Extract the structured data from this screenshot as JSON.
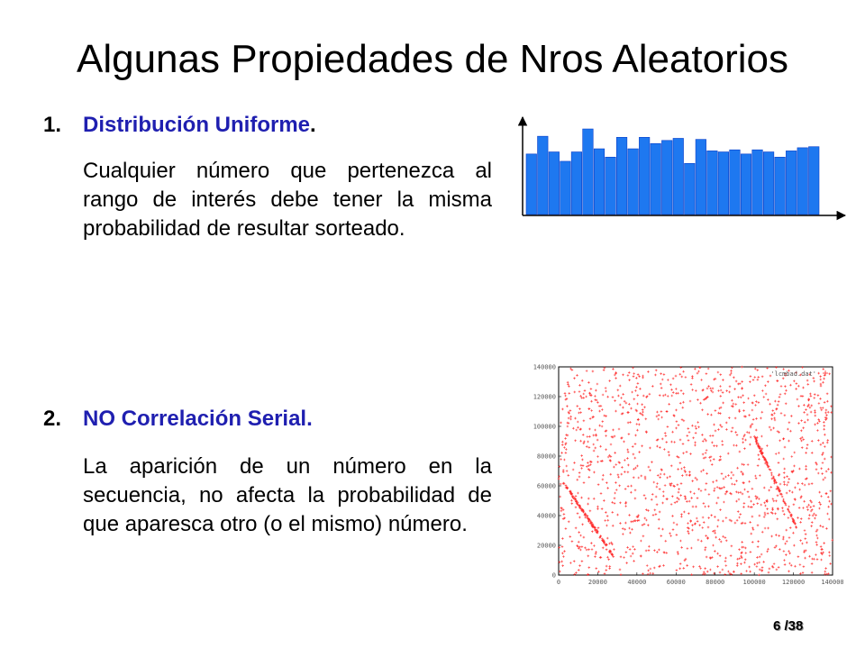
{
  "slide": {
    "title": "Algunas Propiedades  de Nros Aleatorios",
    "page_number": "6",
    "page_total": "/38"
  },
  "items": [
    {
      "number": "1.",
      "label": "Distribución Uniforme",
      "label_suffix": ".",
      "text": "Cualquier número que pertenezca al rango de interés debe tener la misma probabilidad de resultar sorteado."
    },
    {
      "number": "2.",
      "label": "NO Correlación Serial.",
      "label_suffix": "",
      "text": "La aparición de un número en la secuencia, no afecta la probabilidad de que aparesca otro (o el mismo) número."
    }
  ],
  "chart_data": [
    {
      "type": "bar",
      "values": [
        58,
        75,
        60,
        51,
        60,
        82,
        63,
        55,
        74,
        63,
        74,
        68,
        71,
        73,
        49,
        72,
        61,
        60,
        62,
        58,
        62,
        60,
        55,
        61,
        64,
        65
      ],
      "ylim": [
        0,
        95
      ],
      "color": "#1e78f0",
      "edge_color": "#0a3ec8"
    },
    {
      "type": "scatter",
      "legend": "'lcmbad.dat'",
      "legend_position": "top-right",
      "color": "#ff2b2b",
      "xlim": [
        0,
        140000
      ],
      "ylim": [
        0,
        140000
      ],
      "xticks": [
        "0",
        "20000",
        "40000",
        "60000",
        "80000",
        "100000",
        "120000",
        "140000"
      ],
      "yticks": [
        "0",
        "20000",
        "40000",
        "60000",
        "80000",
        "100000",
        "120000",
        "140000"
      ],
      "points_shown": 1600
    }
  ]
}
